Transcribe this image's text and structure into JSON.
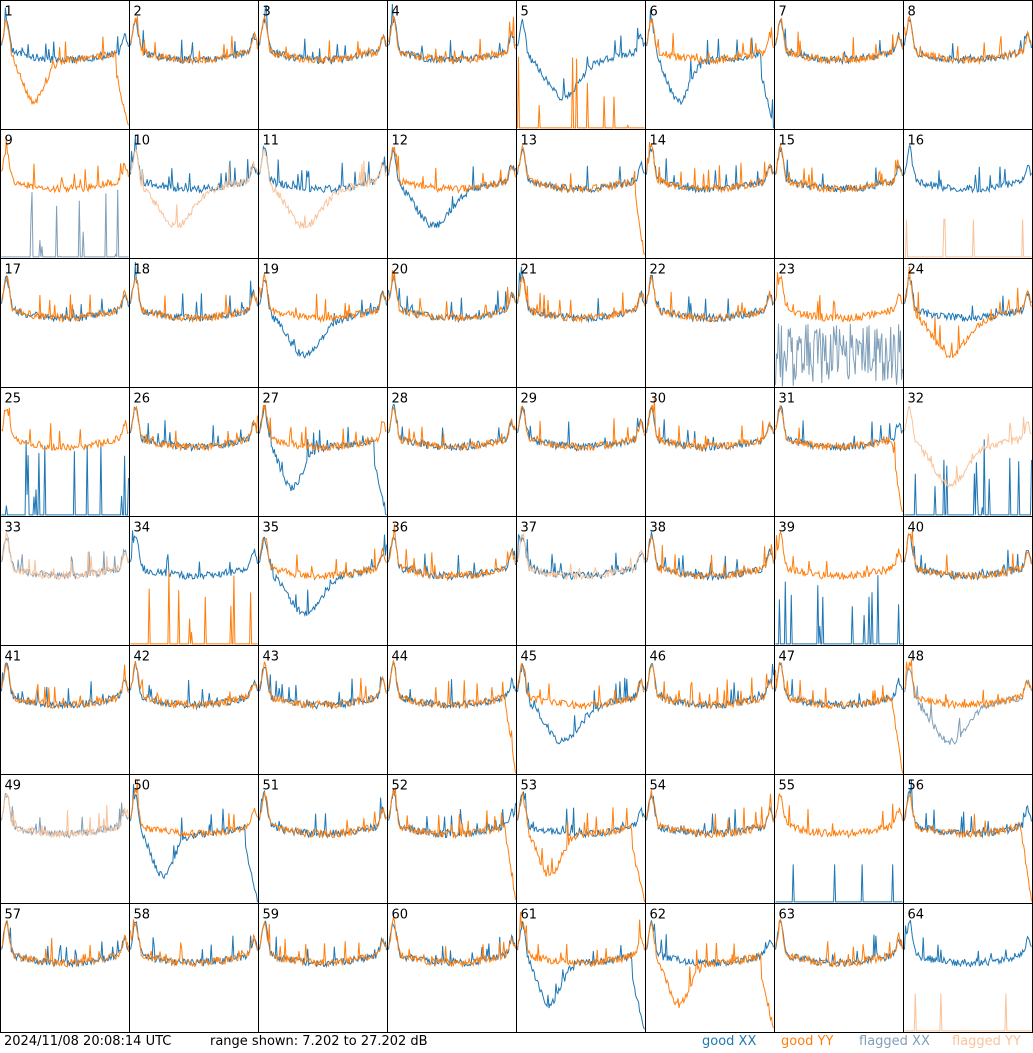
{
  "chart_data": {
    "type": "line",
    "panels": [
      {
        "id": "1",
        "xx": "good",
        "yy": "good",
        "xx_shape": "flat",
        "yy_shape": "dip_drop"
      },
      {
        "id": "2",
        "xx": "good",
        "yy": "good",
        "xx_shape": "flat",
        "yy_shape": "flat"
      },
      {
        "id": "3",
        "xx": "good",
        "yy": "good",
        "xx_shape": "flat",
        "yy_shape": "flat"
      },
      {
        "id": "4",
        "xx": "good",
        "yy": "good",
        "xx_shape": "flat",
        "yy_shape": "flat"
      },
      {
        "id": "5",
        "xx": "good",
        "yy": "good",
        "xx_shape": "dip",
        "yy_shape": "spikes"
      },
      {
        "id": "6",
        "xx": "good",
        "yy": "good",
        "xx_shape": "dip_drop",
        "yy_shape": "flat"
      },
      {
        "id": "7",
        "xx": "good",
        "yy": "good",
        "xx_shape": "flat",
        "yy_shape": "flat"
      },
      {
        "id": "8",
        "xx": "good",
        "yy": "good",
        "xx_shape": "flat",
        "yy_shape": "flat"
      },
      {
        "id": "9",
        "xx": "flagged",
        "yy": "good",
        "xx_shape": "spikes",
        "yy_shape": "flat"
      },
      {
        "id": "10",
        "xx": "good",
        "yy": "flagged",
        "xx_shape": "flat",
        "yy_shape": "dip"
      },
      {
        "id": "11",
        "xx": "good",
        "yy": "flagged",
        "xx_shape": "flat",
        "yy_shape": "dip"
      },
      {
        "id": "12",
        "xx": "good",
        "yy": "good",
        "xx_shape": "dip",
        "yy_shape": "flat"
      },
      {
        "id": "13",
        "xx": "good",
        "yy": "good",
        "xx_shape": "flat",
        "yy_shape": "drop"
      },
      {
        "id": "14",
        "xx": "good",
        "yy": "good",
        "xx_shape": "flat",
        "yy_shape": "flat"
      },
      {
        "id": "15",
        "xx": "good",
        "yy": "good",
        "xx_shape": "flat",
        "yy_shape": "flat"
      },
      {
        "id": "16",
        "xx": "good",
        "yy": "flagged",
        "xx_shape": "flat",
        "yy_shape": "bottom"
      },
      {
        "id": "17",
        "xx": "good",
        "yy": "good",
        "xx_shape": "flat",
        "yy_shape": "flat"
      },
      {
        "id": "18",
        "xx": "good",
        "yy": "good",
        "xx_shape": "flat",
        "yy_shape": "flat"
      },
      {
        "id": "19",
        "xx": "good",
        "yy": "good",
        "xx_shape": "dip",
        "yy_shape": "flat"
      },
      {
        "id": "20",
        "xx": "good",
        "yy": "good",
        "xx_shape": "flat",
        "yy_shape": "flat"
      },
      {
        "id": "21",
        "xx": "good",
        "yy": "good",
        "xx_shape": "flat",
        "yy_shape": "flat"
      },
      {
        "id": "22",
        "xx": "good",
        "yy": "good",
        "xx_shape": "flat",
        "yy_shape": "flat"
      },
      {
        "id": "23",
        "xx": "flagged",
        "yy": "good",
        "xx_shape": "noisy",
        "yy_shape": "flat"
      },
      {
        "id": "24",
        "xx": "good",
        "yy": "good",
        "xx_shape": "flat",
        "yy_shape": "dip"
      },
      {
        "id": "25",
        "xx": "good",
        "yy": "good",
        "xx_shape": "spikes",
        "yy_shape": "flat"
      },
      {
        "id": "26",
        "xx": "good",
        "yy": "good",
        "xx_shape": "flat",
        "yy_shape": "flat"
      },
      {
        "id": "27",
        "xx": "good",
        "yy": "good",
        "xx_shape": "dip_drop",
        "yy_shape": "flat"
      },
      {
        "id": "28",
        "xx": "good",
        "yy": "good",
        "xx_shape": "flat",
        "yy_shape": "flat"
      },
      {
        "id": "29",
        "xx": "good",
        "yy": "good",
        "xx_shape": "flat",
        "yy_shape": "flat"
      },
      {
        "id": "30",
        "xx": "good",
        "yy": "good",
        "xx_shape": "flat",
        "yy_shape": "flat"
      },
      {
        "id": "31",
        "xx": "good",
        "yy": "good",
        "xx_shape": "flat",
        "yy_shape": "drop"
      },
      {
        "id": "32",
        "xx": "good",
        "yy": "flagged",
        "xx_shape": "spikes",
        "yy_shape": "dip"
      },
      {
        "id": "33",
        "xx": "flagged",
        "yy": "flagged",
        "xx_shape": "flat",
        "yy_shape": "flat"
      },
      {
        "id": "34",
        "xx": "good",
        "yy": "good",
        "xx_shape": "flat",
        "yy_shape": "spikes"
      },
      {
        "id": "35",
        "xx": "good",
        "yy": "good",
        "xx_shape": "dip",
        "yy_shape": "flat"
      },
      {
        "id": "36",
        "xx": "good",
        "yy": "good",
        "xx_shape": "flat",
        "yy_shape": "flat"
      },
      {
        "id": "37",
        "xx": "good",
        "yy": "flagged",
        "xx_shape": "flat",
        "yy_shape": "flat"
      },
      {
        "id": "38",
        "xx": "good",
        "yy": "good",
        "xx_shape": "flat",
        "yy_shape": "flat"
      },
      {
        "id": "39",
        "xx": "good",
        "yy": "good",
        "xx_shape": "spikes",
        "yy_shape": "flat"
      },
      {
        "id": "40",
        "xx": "good",
        "yy": "good",
        "xx_shape": "flat",
        "yy_shape": "flat"
      },
      {
        "id": "41",
        "xx": "good",
        "yy": "good",
        "xx_shape": "flat",
        "yy_shape": "flat"
      },
      {
        "id": "42",
        "xx": "good",
        "yy": "good",
        "xx_shape": "flat",
        "yy_shape": "flat"
      },
      {
        "id": "43",
        "xx": "good",
        "yy": "good",
        "xx_shape": "flat",
        "yy_shape": "flat"
      },
      {
        "id": "44",
        "xx": "good",
        "yy": "good",
        "xx_shape": "flat",
        "yy_shape": "drop"
      },
      {
        "id": "45",
        "xx": "good",
        "yy": "good",
        "xx_shape": "dip",
        "yy_shape": "flat"
      },
      {
        "id": "46",
        "xx": "good",
        "yy": "good",
        "xx_shape": "flat",
        "yy_shape": "flat"
      },
      {
        "id": "47",
        "xx": "good",
        "yy": "good",
        "xx_shape": "flat",
        "yy_shape": "drop"
      },
      {
        "id": "48",
        "xx": "flagged",
        "yy": "good",
        "xx_shape": "dip",
        "yy_shape": "flat"
      },
      {
        "id": "49",
        "xx": "flagged",
        "yy": "flagged",
        "xx_shape": "flat",
        "yy_shape": "flat"
      },
      {
        "id": "50",
        "xx": "good",
        "yy": "good",
        "xx_shape": "dip_drop",
        "yy_shape": "flat"
      },
      {
        "id": "51",
        "xx": "good",
        "yy": "good",
        "xx_shape": "flat",
        "yy_shape": "flat"
      },
      {
        "id": "52",
        "xx": "good",
        "yy": "good",
        "xx_shape": "flat",
        "yy_shape": "drop"
      },
      {
        "id": "53",
        "xx": "good",
        "yy": "good",
        "xx_shape": "flat",
        "yy_shape": "dip_drop"
      },
      {
        "id": "54",
        "xx": "good",
        "yy": "good",
        "xx_shape": "flat",
        "yy_shape": "flat"
      },
      {
        "id": "55",
        "xx": "good",
        "yy": "good",
        "xx_shape": "bottom",
        "yy_shape": "flat"
      },
      {
        "id": "56",
        "xx": "good",
        "yy": "good",
        "xx_shape": "flat",
        "yy_shape": "drop"
      },
      {
        "id": "57",
        "xx": "good",
        "yy": "good",
        "xx_shape": "flat",
        "yy_shape": "flat"
      },
      {
        "id": "58",
        "xx": "good",
        "yy": "good",
        "xx_shape": "flat",
        "yy_shape": "flat"
      },
      {
        "id": "59",
        "xx": "good",
        "yy": "good",
        "xx_shape": "flat",
        "yy_shape": "flat"
      },
      {
        "id": "60",
        "xx": "good",
        "yy": "good",
        "xx_shape": "flat",
        "yy_shape": "flat"
      },
      {
        "id": "61",
        "xx": "good",
        "yy": "good",
        "xx_shape": "dip_drop",
        "yy_shape": "flat"
      },
      {
        "id": "62",
        "xx": "good",
        "yy": "good",
        "xx_shape": "flat",
        "yy_shape": "dip_drop"
      },
      {
        "id": "63",
        "xx": "good",
        "yy": "good",
        "xx_shape": "flat",
        "yy_shape": "flat"
      },
      {
        "id": "64",
        "xx": "good",
        "yy": "flagged",
        "xx_shape": "flat",
        "yy_shape": "bottom"
      }
    ],
    "ylim": [
      7.202,
      27.202
    ],
    "unit": "dB"
  },
  "colors": {
    "good_xx": "#1f77b4",
    "good_yy": "#ff7f0e",
    "flagged_xx": "#7f9fb9",
    "flagged_yy": "#f9c39a"
  },
  "footer": {
    "timestamp": "2024/11/08 20:08:14 UTC",
    "range": "range shown: 7.202 to 27.202 dB"
  },
  "legend": {
    "good_xx": "good XX",
    "good_yy": "good YY",
    "flagged_xx": "flagged XX",
    "flagged_yy": "flagged YY"
  }
}
